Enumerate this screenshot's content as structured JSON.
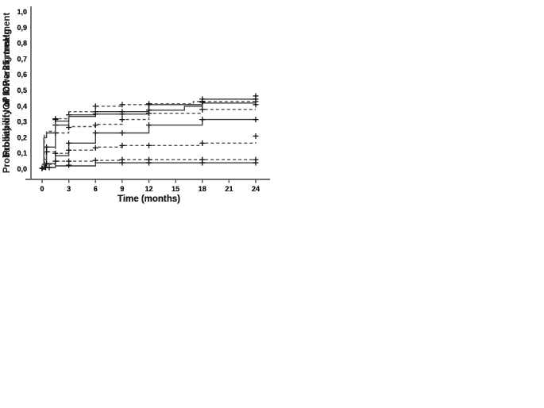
{
  "figure": {
    "description_label": "Kaplan-Meier style step plots, four panels",
    "x_axis_label": "Time (months)",
    "axis_color": "#555555",
    "text_color": "#1c1c1c",
    "solid_line_color": "#3e3e3e",
    "dashed_line_color": "#4f4f4f",
    "marker_color": "#111111",
    "background_color": "#ffffff"
  },
  "chart_data": [
    {
      "type": "line",
      "subtype": "step-survival",
      "title": "",
      "ylabel": "Probability of IOP > 21 mmHg",
      "xlabel": "Time (months)",
      "x_ticks": [
        0,
        3,
        6,
        9,
        12,
        15,
        18,
        21,
        24
      ],
      "y_tick_labels": [
        "0,0",
        "0,1",
        "0,2",
        "0,3",
        "0,4",
        "0,5",
        "0,6",
        "0,7",
        "0,8",
        "0,9",
        "1,0"
      ],
      "xlim": [
        0,
        24
      ],
      "ylim": [
        0,
        1
      ],
      "grid": false,
      "legend": null,
      "series": [
        {
          "name": "solid-group",
          "style": "solid",
          "steps": [
            [
              0,
              0
            ],
            [
              0.2,
              0.06
            ],
            [
              0.5,
              0.14
            ],
            [
              1.5,
              0.28
            ],
            [
              3,
              0.345
            ],
            [
              6,
              0.365
            ],
            [
              12,
              0.41
            ],
            [
              18,
              0.445
            ],
            [
              24,
              0.445
            ]
          ],
          "censor_markers": [
            [
              0,
              0.005
            ],
            [
              0.5,
              0.14
            ],
            [
              1.5,
              0.28
            ],
            [
              3,
              0.345
            ],
            [
              6,
              0.365
            ],
            [
              9,
              0.365
            ],
            [
              12,
              0.41
            ],
            [
              18,
              0.445
            ],
            [
              24,
              0.445
            ]
          ]
        },
        {
          "name": "dashed-group",
          "style": "dashed",
          "steps": [
            [
              0,
              0
            ],
            [
              0.5,
              0.11
            ],
            [
              1.5,
              0.23
            ],
            [
              3,
              0.27
            ],
            [
              6,
              0.285
            ],
            [
              9,
              0.315
            ],
            [
              12,
              0.355
            ],
            [
              18,
              0.38
            ],
            [
              24,
              0.38
            ]
          ],
          "censor_markers": [
            [
              0.5,
              0.11
            ],
            [
              1.5,
              0.23
            ],
            [
              3,
              0.265
            ],
            [
              6,
              0.28
            ],
            [
              9,
              0.315
            ],
            [
              12,
              0.355
            ],
            [
              18,
              0.38
            ],
            [
              24,
              0.43
            ]
          ]
        }
      ]
    },
    {
      "type": "line",
      "subtype": "step-survival",
      "title": "",
      "ylabel": "Probability of IOP ≥ 25 mmHg",
      "xlabel": "Time (months)",
      "x_ticks": [
        0,
        3,
        6,
        9,
        12,
        15,
        18,
        21,
        24
      ],
      "y_tick_labels": [
        "0,0",
        "0,1",
        "0,2",
        "0,3",
        "0,4",
        "0,5",
        "0,6",
        "0,7",
        "0,8",
        "0,9",
        "1,0"
      ],
      "xlim": [
        0,
        24
      ],
      "ylim": [
        0,
        1
      ],
      "grid": false,
      "legend": null,
      "series": [
        {
          "name": "solid-group",
          "style": "solid",
          "steps": [
            [
              0,
              0
            ],
            [
              0.25,
              0.02
            ],
            [
              0.5,
              0.035
            ],
            [
              1.5,
              0.085
            ],
            [
              3,
              0.165
            ],
            [
              6,
              0.23
            ],
            [
              12,
              0.28
            ],
            [
              18,
              0.315
            ],
            [
              24,
              0.315
            ]
          ],
          "censor_markers": [
            [
              0,
              0.005
            ],
            [
              0.3,
              0.03
            ],
            [
              3,
              0.165
            ],
            [
              6,
              0.23
            ],
            [
              9,
              0.23
            ],
            [
              12,
              0.28
            ],
            [
              18,
              0.315
            ],
            [
              24,
              0.315
            ]
          ]
        },
        {
          "name": "dashed-group",
          "style": "dashed",
          "steps": [
            [
              0,
              0
            ],
            [
              0.3,
              0.03
            ],
            [
              1.5,
              0.1
            ],
            [
              3,
              0.12
            ],
            [
              6,
              0.14
            ],
            [
              9,
              0.15
            ],
            [
              18,
              0.165
            ],
            [
              24,
              0.17
            ]
          ],
          "censor_markers": [
            [
              0.5,
              0.035
            ],
            [
              1.5,
              0.1
            ],
            [
              3,
              0.12
            ],
            [
              6,
              0.135
            ],
            [
              9,
              0.15
            ],
            [
              12,
              0.15
            ],
            [
              18,
              0.165
            ],
            [
              24,
              0.21
            ]
          ]
        }
      ]
    },
    {
      "type": "line",
      "subtype": "step-survival",
      "title": "",
      "ylabel": "Probability of IOP ≥ 35 mmHg",
      "xlabel": "Time (months)",
      "x_ticks": [
        0,
        3,
        6,
        9,
        12,
        15,
        18,
        21,
        24
      ],
      "y_tick_labels": [
        "0,0",
        "0,1",
        "0,2",
        "0,3",
        "0,4",
        "0,5",
        "0,6",
        "0,7",
        "0,8",
        "0,9",
        "1,0"
      ],
      "xlim": [
        0,
        24
      ],
      "ylim": [
        0,
        1
      ],
      "grid": false,
      "legend": null,
      "series": [
        {
          "name": "solid-group",
          "style": "solid",
          "steps": [
            [
              0,
              0
            ],
            [
              0.3,
              0.01
            ],
            [
              1.5,
              0.02
            ],
            [
              6,
              0.04
            ],
            [
              24,
              0.04
            ]
          ],
          "censor_markers": [
            [
              0,
              0.005
            ],
            [
              0.4,
              0.01
            ],
            [
              0.8,
              0.01
            ],
            [
              3,
              0.025
            ],
            [
              9,
              0.04
            ],
            [
              12,
              0.04
            ],
            [
              18,
              0.04
            ],
            [
              24,
              0.04
            ]
          ]
        },
        {
          "name": "dashed-group",
          "style": "dashed",
          "steps": [
            [
              0,
              0
            ],
            [
              0.3,
              0.01
            ],
            [
              1.5,
              0.05
            ],
            [
              6,
              0.055
            ],
            [
              9,
              0.06
            ],
            [
              24,
              0.06
            ]
          ],
          "censor_markers": [
            [
              1.5,
              0.05
            ],
            [
              3,
              0.05
            ],
            [
              6,
              0.055
            ],
            [
              9,
              0.06
            ],
            [
              12,
              0.06
            ],
            [
              18,
              0.06
            ],
            [
              24,
              0.06
            ]
          ]
        }
      ]
    },
    {
      "type": "line",
      "subtype": "step-survival",
      "title": "",
      "ylabel": "Probability of IOP lowering treatment",
      "xlabel": "Time (months)",
      "x_ticks": [
        0,
        3,
        6,
        9,
        12,
        15,
        18,
        21,
        24
      ],
      "y_tick_labels": [
        "0,0",
        "0,1",
        "0,2",
        "0,3",
        "0,4",
        "0,5",
        "0,6",
        "0,7",
        "0,8",
        "0,9",
        "1,0"
      ],
      "xlim": [
        0,
        24
      ],
      "ylim": [
        0,
        1
      ],
      "grid": false,
      "legend": null,
      "series": [
        {
          "name": "solid-group",
          "style": "solid",
          "steps": [
            [
              0,
              0
            ],
            [
              0.2,
              0.2
            ],
            [
              0.5,
              0.23
            ],
            [
              1.5,
              0.305
            ],
            [
              3,
              0.335
            ],
            [
              6,
              0.35
            ],
            [
              12,
              0.375
            ],
            [
              16,
              0.4
            ],
            [
              18,
              0.42
            ],
            [
              24,
              0.42
            ]
          ],
          "censor_markers": [
            [
              0,
              0.005
            ],
            [
              1.5,
              0.315
            ],
            [
              6,
              0.35
            ],
            [
              9,
              0.35
            ],
            [
              12,
              0.375
            ],
            [
              18,
              0.425
            ],
            [
              24,
              0.41
            ]
          ]
        },
        {
          "name": "dashed-group",
          "style": "dashed",
          "steps": [
            [
              0,
              0
            ],
            [
              0.25,
              0.215
            ],
            [
              0.5,
              0.24
            ],
            [
              1.5,
              0.32
            ],
            [
              3,
              0.365
            ],
            [
              6,
              0.4
            ],
            [
              9,
              0.41
            ],
            [
              12,
              0.415
            ],
            [
              17,
              0.43
            ],
            [
              24,
              0.43
            ]
          ],
          "censor_markers": [
            [
              1.5,
              0.32
            ],
            [
              6,
              0.4
            ],
            [
              9,
              0.41
            ],
            [
              12,
              0.415
            ],
            [
              18,
              0.43
            ],
            [
              24,
              0.465
            ]
          ]
        }
      ]
    }
  ]
}
